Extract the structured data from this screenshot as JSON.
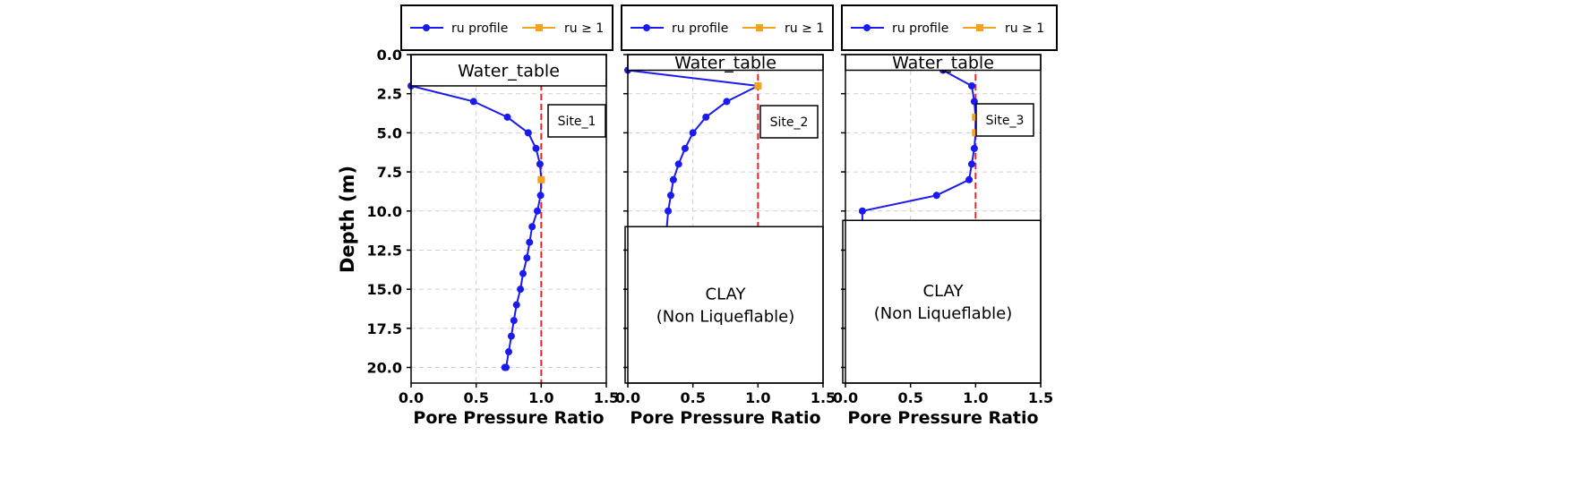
{
  "chart_data": {
    "type": "line",
    "shared_ylabel": "Depth (m)",
    "ylim": [
      21,
      0
    ],
    "y_ticks": [
      0.0,
      2.5,
      5.0,
      7.5,
      10.0,
      12.5,
      15.0,
      17.5,
      20.0
    ],
    "y_tick_labels": [
      "0.0",
      "2.5",
      "5.0",
      "7.5",
      "10.0",
      "12.5",
      "15.0",
      "17.5",
      "20.0"
    ],
    "xlim": [
      0.0,
      1.5
    ],
    "x_ticks": [
      0.0,
      0.5,
      1.0,
      1.5
    ],
    "x_tick_labels": [
      "0.0",
      "0.5",
      "1.0",
      "1.5"
    ],
    "grid": true,
    "threshold_line": {
      "x": 1.0,
      "color": "#e8262a",
      "style": "dashed"
    },
    "legend_labels": [
      "ru profile",
      "ru ≥ 1"
    ],
    "colors": {
      "profile": "#1a1aef",
      "exceed": "#f5a31a"
    },
    "panels": [
      {
        "xlabel": "Pore Pressure Ratio",
        "water_table_label": "Water_table",
        "site_label": "Site_1",
        "water_table_depth": 2.0,
        "clay_depth": null,
        "clay_label": [],
        "series": [
          {
            "name": "ru profile",
            "x": [
              0.0,
              0.0,
              0.48,
              0.74,
              0.9,
              0.96,
              0.99,
              1.0,
              0.995,
              0.97,
              0.93,
              0.91,
              0.89,
              0.86,
              0.84,
              0.81,
              0.79,
              0.77,
              0.75,
              0.73,
              0.72
            ],
            "y": [
              0,
              2,
              3,
              4,
              5,
              6,
              7,
              8,
              9,
              10,
              11,
              12,
              13,
              14,
              15,
              16,
              17,
              18,
              19,
              20,
              20
            ]
          },
          {
            "name": "ru ≥ 1",
            "x": [
              1.0
            ],
            "y": [
              8
            ]
          }
        ]
      },
      {
        "xlabel": "Pore Pressure Ratio",
        "water_table_label": "Water_table",
        "site_label": "Site_2",
        "water_table_depth": 1.0,
        "clay_depth": 11.0,
        "clay_label": [
          "CLAY",
          "(Non Liqueflable)"
        ],
        "series": [
          {
            "name": "ru profile",
            "x": [
              0.0,
              1.0,
              0.76,
              0.6,
              0.5,
              0.44,
              0.39,
              0.35,
              0.33,
              0.31,
              0.3
            ],
            "y": [
              1,
              2,
              3,
              4,
              5,
              6,
              7,
              8,
              9,
              10,
              11
            ]
          },
          {
            "name": "ru ≥ 1",
            "x": [
              1.0
            ],
            "y": [
              2
            ]
          }
        ]
      },
      {
        "xlabel": "Pore Pressure Ratio",
        "water_table_label": "Water_table",
        "site_label": "Site_3",
        "water_table_depth": 1.0,
        "clay_depth": 10.6,
        "clay_label": [
          "CLAY",
          "(Non Liqueflable)"
        ],
        "series": [
          {
            "name": "ru profile",
            "x": [
              0.75,
              0.97,
              0.99,
              1.0,
              1.0,
              0.99,
              0.97,
              0.95,
              0.7,
              0.13,
              0.13
            ],
            "y": [
              1,
              2,
              3,
              4,
              5,
              6,
              7,
              8,
              9,
              10,
              10.6
            ]
          },
          {
            "name": "ru ≥ 1",
            "x": [
              1.0,
              1.0
            ],
            "y": [
              4,
              5
            ]
          }
        ]
      }
    ]
  }
}
